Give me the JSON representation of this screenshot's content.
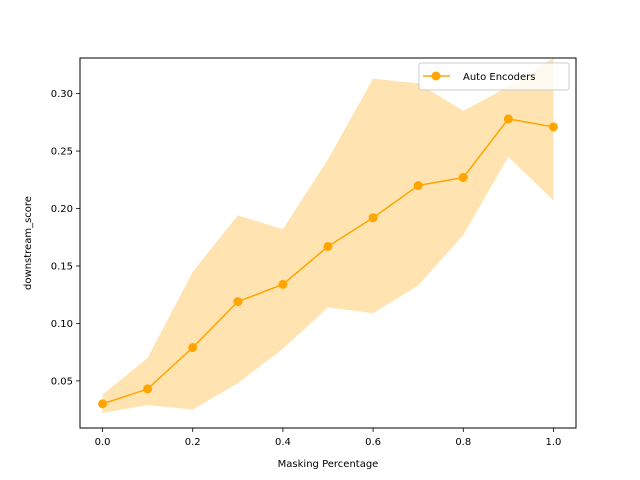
{
  "chart_data": {
    "type": "line",
    "title": "",
    "xlabel": "Masking Percentage",
    "ylabel": "downstream_score",
    "xlim": [
      -0.05,
      1.05
    ],
    "ylim": [
      0.009,
      0.331
    ],
    "xticks": [
      0.0,
      0.2,
      0.4,
      0.6,
      0.8,
      1.0
    ],
    "xtick_labels": [
      "0.0",
      "0.2",
      "0.4",
      "0.6",
      "0.8",
      "1.0"
    ],
    "yticks": [
      0.05,
      0.1,
      0.15,
      0.2,
      0.25,
      0.3
    ],
    "ytick_labels": [
      "0.05",
      "0.10",
      "0.15",
      "0.20",
      "0.25",
      "0.30"
    ],
    "grid": false,
    "legend_position": "top-right",
    "colors": {
      "series": "#ffa500",
      "band": "#ffa500"
    },
    "series": [
      {
        "name": "Auto Encoders",
        "marker": "circle",
        "x": [
          0.0,
          0.1,
          0.2,
          0.3,
          0.4,
          0.5,
          0.6,
          0.7,
          0.8,
          0.9,
          1.0
        ],
        "y": [
          0.03,
          0.043,
          0.079,
          0.119,
          0.134,
          0.167,
          0.192,
          0.22,
          0.227,
          0.278,
          0.271
        ],
        "lower": [
          0.022,
          0.029,
          0.025,
          0.048,
          0.078,
          0.114,
          0.109,
          0.133,
          0.177,
          0.245,
          0.207
        ],
        "upper": [
          0.038,
          0.07,
          0.145,
          0.194,
          0.182,
          0.243,
          0.313,
          0.309,
          0.285,
          0.306,
          0.331
        ]
      }
    ]
  }
}
